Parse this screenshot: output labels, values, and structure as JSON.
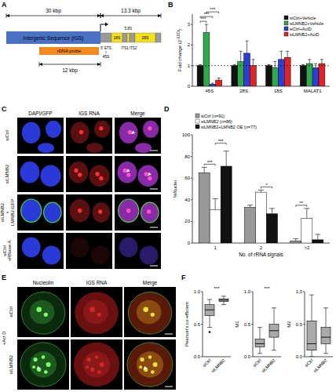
{
  "panel_labels": [
    "A",
    "B",
    "C",
    "D",
    "E",
    "F"
  ],
  "diagram": {
    "span_igs": "30 kbp",
    "span_gene": "13.3 kbp",
    "igs": "Intergenic Sequence (IGS)",
    "probe": "rDNA probe",
    "probe_span": "12 kbp",
    "transcript": "45S",
    "segments": [
      "5' ETS",
      "18S",
      "ITS1",
      "5.8S",
      "ITS2",
      "28S"
    ]
  },
  "chart_data": [
    {
      "type": "bar",
      "y_label": {
        "text": "Fold change (2",
        "sup": "-ΔΔCt",
        "after": ")"
      },
      "categories": [
        "45S",
        "28S",
        "18S",
        "MALAT1"
      ],
      "series": [
        {
          "name": "siCtrl+Vehicle",
          "color": "#111111",
          "values": [
            1,
            1,
            1,
            1
          ],
          "errors": [
            0.05,
            0.05,
            0.05,
            0.05
          ]
        },
        {
          "name": "siLMNB2+Vehicle",
          "color": "#2ea84a",
          "values": [
            2.6,
            1.2,
            0.9,
            1.1
          ],
          "errors": [
            0.4,
            0.5,
            0.3,
            0.2
          ]
        },
        {
          "name": "siCtrl+ActD",
          "color": "#2b3fd6",
          "values": [
            0.1,
            1.6,
            1.3,
            0.9
          ],
          "errors": [
            0.05,
            0.6,
            0.4,
            0.2
          ]
        },
        {
          "name": "siLMNB2+ActD",
          "color": "#e02424",
          "values": [
            0.3,
            1.0,
            1.4,
            1.1
          ],
          "errors": [
            0.1,
            0.3,
            0.3,
            0.2
          ]
        }
      ],
      "ylim": [
        0,
        3.5
      ],
      "yticks": [
        0,
        1,
        2,
        3
      ],
      "legend": "upper right",
      "reference_line": 1,
      "annotations": [
        {
          "text": "***",
          "category": 0,
          "series": [
            0,
            1
          ]
        },
        {
          "text": "***",
          "category": 0,
          "series": [
            0,
            2
          ]
        },
        {
          "text": "***",
          "category": 0,
          "series": [
            1,
            3
          ]
        }
      ]
    },
    {
      "type": "bar",
      "x_label": "No. of rRNA signals",
      "y_label": "%Nuclei",
      "categories": [
        "1",
        "2",
        ">2"
      ],
      "series": [
        {
          "name": "siCtrl (n=91)",
          "color": "#999999",
          "values": [
            65,
            33,
            2
          ],
          "errors": [
            5,
            2,
            2
          ]
        },
        {
          "name": "siLMNB2 (n=86)",
          "color": "#ffffff",
          "values": [
            31,
            47,
            23
          ],
          "errors": [
            10,
            2,
            9
          ]
        },
        {
          "name": "siLMNB2+LMNB2 OE (n=77)",
          "color": "#111111",
          "values": [
            71,
            27,
            3
          ],
          "errors": [
            14,
            5,
            5
          ]
        }
      ],
      "ylim": [
        0,
        100
      ],
      "yticks": [
        0,
        20,
        40,
        60,
        80,
        100
      ],
      "legend": "upper left",
      "annotations": [
        {
          "text": "***",
          "category": 0,
          "series": [
            0,
            1
          ]
        },
        {
          "text": "***",
          "category": 0,
          "series": [
            1,
            2
          ]
        },
        {
          "text": "*",
          "category": 1,
          "series": [
            1,
            2
          ]
        },
        {
          "text": "**",
          "category": 2,
          "series": [
            0,
            1
          ]
        }
      ]
    },
    {
      "type": "box",
      "y_label": "Pearson's co-efficient",
      "categories": [
        "siCtrl",
        "siLMNB2"
      ],
      "color": "#aaaaaa",
      "boxes": [
        {
          "min": 0.45,
          "q1": 0.63,
          "median": 0.72,
          "q3": 0.8,
          "max": 0.88
        },
        {
          "min": 0.8,
          "q1": 0.85,
          "median": 0.87,
          "q3": 0.89,
          "max": 0.93
        }
      ],
      "outliers": [
        [
          0.38
        ],
        []
      ],
      "ylim": [
        0,
        1
      ],
      "yticks": [
        {
          "value": 0,
          "label": "0.0"
        },
        {
          "value": 0.5,
          "label": "0.5"
        },
        {
          "value": 1,
          "label": "1.0"
        }
      ],
      "annotations": [
        {
          "text": "***",
          "between": [
            0,
            1
          ]
        }
      ]
    },
    {
      "type": "box",
      "y_label": "M1",
      "categories": [
        "siCtrl",
        "siLMNB2"
      ],
      "color": "#aaaaaa",
      "boxes": [
        {
          "min": 0.05,
          "q1": 0.15,
          "median": 0.2,
          "q3": 0.27,
          "max": 0.45
        },
        {
          "min": 0.1,
          "q1": 0.3,
          "median": 0.4,
          "q3": 0.5,
          "max": 0.75
        }
      ],
      "ylim": [
        0,
        1
      ],
      "yticks": [
        {
          "value": 0,
          "label": "0.0"
        },
        {
          "value": 0.5,
          "label": "0.5"
        },
        {
          "value": 1,
          "label": "1.0"
        }
      ],
      "annotations": [
        {
          "text": "***",
          "between": [
            0,
            1
          ]
        }
      ]
    },
    {
      "type": "box",
      "y_label": "M2",
      "categories": [
        "siCtrl",
        "siLMNB2"
      ],
      "color": "#aaaaaa",
      "boxes": [
        {
          "min": 0.0,
          "q1": 0.1,
          "median": 0.2,
          "q3": 0.55,
          "max": 0.95
        },
        {
          "min": 0.05,
          "q1": 0.2,
          "median": 0.3,
          "q3": 0.45,
          "max": 0.75
        }
      ],
      "ylim": [
        0,
        1
      ],
      "yticks": [
        {
          "value": 0,
          "label": "0.0"
        },
        {
          "value": 0.5,
          "label": "0.5"
        },
        {
          "value": 1,
          "label": "1.0"
        }
      ]
    }
  ],
  "micrograph_c": {
    "columns": [
      "DAPI/GFP",
      "IGS RNA",
      "Merge"
    ],
    "rows": [
      [
        "siCtrl"
      ],
      [
        "siLMNB2"
      ],
      [
        "siLMNB2",
        "+",
        "LMNB2-GFP"
      ],
      [
        "siCtrl",
        "+RNase A"
      ]
    ]
  },
  "micrograph_e": {
    "columns": [
      "Nucleolin",
      "IGS RNA",
      "Merge"
    ],
    "rows": [
      "siCtrl",
      "siLMNB2"
    ],
    "treatment": "+Act D"
  }
}
